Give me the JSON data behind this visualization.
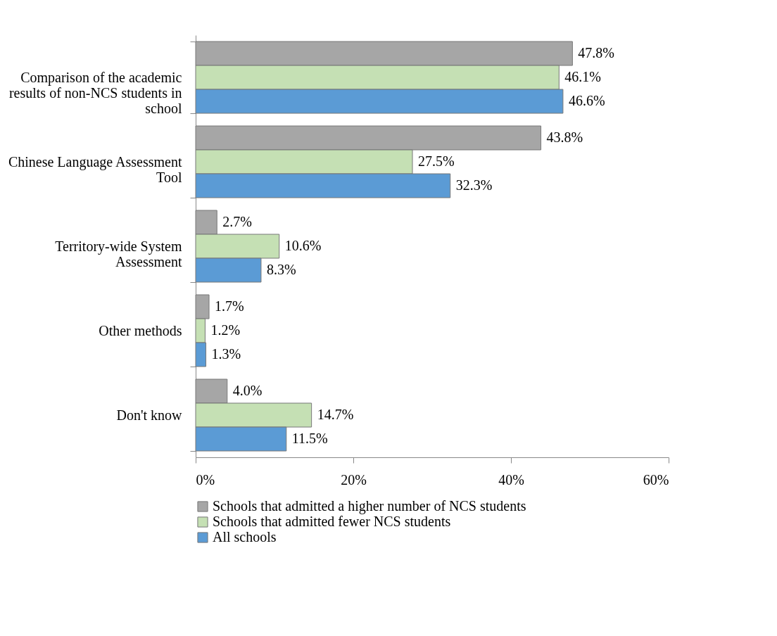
{
  "chart_data": {
    "type": "bar",
    "orientation": "horizontal",
    "categories": [
      "Comparison of the academic results of non-NCS students in school",
      "Chinese Language Assessment Tool",
      "Territory-wide System Assessment",
      "Other methods",
      "Don't know"
    ],
    "series": [
      {
        "name": "Schools that admitted a higher number of NCS students",
        "color": "#a6a6a6",
        "values": [
          47.8,
          43.8,
          2.7,
          1.7,
          4.0
        ],
        "value_labels": [
          "47.8%",
          "43.8%",
          "2.7%",
          "1.7%",
          "4.0%"
        ]
      },
      {
        "name": "Schools that admitted fewer NCS students",
        "color": "#c5e0b4",
        "values": [
          46.1,
          27.5,
          10.6,
          1.2,
          14.7
        ],
        "value_labels": [
          "46.1%",
          "27.5%",
          "10.6%",
          "1.2%",
          "14.7%"
        ]
      },
      {
        "name": "All schools",
        "color": "#5b9bd5",
        "values": [
          46.6,
          32.3,
          8.3,
          1.3,
          11.5
        ],
        "value_labels": [
          "46.6%",
          "32.3%",
          "8.3%",
          "1.3%",
          "11.5%"
        ]
      }
    ],
    "xlim": [
      0,
      60
    ],
    "xticks": [
      {
        "value": 0,
        "label": "0%"
      },
      {
        "value": 20,
        "label": "20%"
      },
      {
        "value": 40,
        "label": "40%"
      },
      {
        "value": 60,
        "label": "60%"
      }
    ],
    "grid": false,
    "legend": "bottom"
  }
}
